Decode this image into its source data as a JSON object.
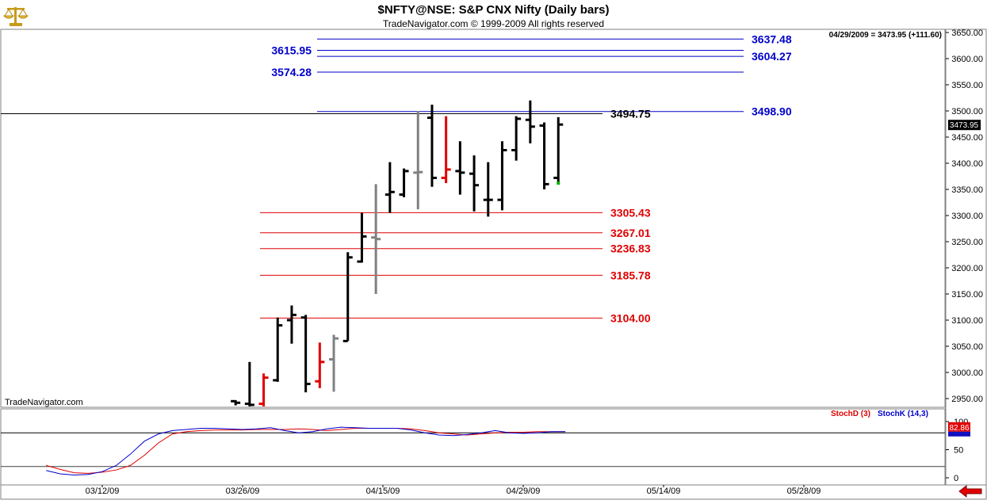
{
  "header": {
    "title": "$NFTY@NSE:  S&P CNX Nifty  (Daily bars)",
    "copyright": "TradeNavigator.com © 1999-2009 All rights reserved",
    "last_quote": "04/29/2009 = 3473.95 (+111.60)",
    "watermark": "TradeNavigator.com",
    "logo_icon": "scales-icon"
  },
  "chart_data": [
    {
      "type": "bar",
      "subtype": "ohlc",
      "title": "$NFTY@NSE:  S&P CNX Nifty  (Daily bars)",
      "price_axis": {
        "side": "right",
        "ylim": [
          2900,
          3660
        ],
        "ticks": [
          2950,
          3000,
          3050,
          3100,
          3150,
          3200,
          3250,
          3300,
          3350,
          3400,
          3450,
          3500,
          3550,
          3600,
          3650
        ],
        "tick_labels": [
          "2950.00",
          "3000.00",
          "3050.00",
          "3100.00",
          "3150.00",
          "3200.00",
          "3250.00",
          "3300.00",
          "3350.00",
          "3400.00",
          "3450.00",
          "3500.00",
          "3550.00",
          "3600.00",
          "3650.00"
        ],
        "last_price_label": "3473.95",
        "last_price": 3473.95
      },
      "x_axis": {
        "tick_labels": [
          "03/12/09",
          "03/26/09",
          "04/15/09",
          "04/29/09",
          "05/14/09",
          "05/28/09"
        ],
        "tick_bar_index": [
          0,
          10,
          20,
          30,
          40,
          50
        ]
      },
      "bars": [
        {
          "i": 9.5,
          "o": 2945,
          "h": 2947,
          "l": 2937,
          "c": 2942,
          "color": "#000000"
        },
        {
          "i": 10.5,
          "o": 2940,
          "h": 3020,
          "l": 2935,
          "c": 2938,
          "color": "#000000"
        },
        {
          "i": 11.5,
          "o": 2940,
          "h": 2998,
          "l": 2935,
          "c": 2990,
          "color": "#e00000"
        },
        {
          "i": 12.5,
          "o": 2985,
          "h": 3105,
          "l": 2982,
          "c": 3090,
          "color": "#000000"
        },
        {
          "i": 13.5,
          "o": 3100,
          "h": 3128,
          "l": 3055,
          "c": 3110,
          "color": "#000000"
        },
        {
          "i": 14.5,
          "o": 3105,
          "h": 3110,
          "l": 2962,
          "c": 2978,
          "color": "#000000"
        },
        {
          "i": 15.5,
          "o": 2983,
          "h": 3057,
          "l": 2970,
          "c": 3020,
          "color": "#e00000"
        },
        {
          "i": 16.5,
          "o": 3025,
          "h": 3072,
          "l": 2963,
          "c": 3065,
          "color": "#808080"
        },
        {
          "i": 17.5,
          "o": 3060,
          "h": 3230,
          "l": 3060,
          "c": 3220,
          "color": "#000000"
        },
        {
          "i": 18.5,
          "o": 3212,
          "h": 3305,
          "l": 3210,
          "c": 3260,
          "color": "#000000"
        },
        {
          "i": 19.5,
          "o": 3258,
          "h": 3360,
          "l": 3150,
          "c": 3255,
          "color": "#808080"
        },
        {
          "i": 20.5,
          "o": 3340,
          "h": 3402,
          "l": 3305,
          "c": 3345,
          "color": "#000000"
        },
        {
          "i": 21.5,
          "o": 3340,
          "h": 3390,
          "l": 3335,
          "c": 3385,
          "color": "#000000"
        },
        {
          "i": 22.5,
          "o": 3382,
          "h": 3500,
          "l": 3312,
          "c": 3383,
          "color": "#808080"
        },
        {
          "i": 23.5,
          "o": 3487,
          "h": 3512,
          "l": 3355,
          "c": 3372,
          "color": "#000000"
        },
        {
          "i": 24.5,
          "o": 3372,
          "h": 3490,
          "l": 3362,
          "c": 3388,
          "color": "#e00000"
        },
        {
          "i": 25.5,
          "o": 3385,
          "h": 3442,
          "l": 3340,
          "c": 3382,
          "color": "#000000"
        },
        {
          "i": 26.5,
          "o": 3380,
          "h": 3415,
          "l": 3308,
          "c": 3358,
          "color": "#000000"
        },
        {
          "i": 27.5,
          "o": 3330,
          "h": 3402,
          "l": 3298,
          "c": 3330,
          "color": "#000000"
        },
        {
          "i": 28.5,
          "o": 3330,
          "h": 3442,
          "l": 3310,
          "c": 3425,
          "color": "#000000"
        },
        {
          "i": 29.5,
          "o": 3425,
          "h": 3490,
          "l": 3405,
          "c": 3485,
          "color": "#000000"
        },
        {
          "i": 30.5,
          "o": 3483,
          "h": 3520,
          "l": 3438,
          "c": 3470,
          "color": "#000000"
        },
        {
          "i": 31.5,
          "o": 3472,
          "h": 3478,
          "l": 3350,
          "c": 3360,
          "color": "#000000"
        },
        {
          "i": 32.5,
          "o": 3372,
          "h": 3488,
          "l": 3360,
          "c": 3473.95,
          "color": "#000000"
        }
      ],
      "levels": [
        {
          "label": "3637.48",
          "value": 3637.48,
          "color": "#0000cc"
        },
        {
          "label": "3615.95",
          "value": 3615.95,
          "color": "#0000cc"
        },
        {
          "label": "3604.27",
          "value": 3604.27,
          "color": "#0000cc"
        },
        {
          "label": "3574.28",
          "value": 3574.28,
          "color": "#0000cc"
        },
        {
          "label": "3498.90",
          "value": 3498.9,
          "color": "#0000cc"
        },
        {
          "label": "3494.75",
          "value": 3494.75,
          "color": "#000000"
        },
        {
          "label": "3305.43",
          "value": 3305.43,
          "color": "#e00000"
        },
        {
          "label": "3267.01",
          "value": 3267.01,
          "color": "#e00000"
        },
        {
          "label": "3236.83",
          "value": 3236.83,
          "color": "#e00000"
        },
        {
          "label": "3185.78",
          "value": 3185.78,
          "color": "#e00000"
        },
        {
          "label": "3104.00",
          "value": 3104.0,
          "color": "#e00000"
        }
      ],
      "reference_line": {
        "value": 3494.75,
        "color": "#000000"
      }
    },
    {
      "type": "line",
      "title": "",
      "ylim": [
        -5,
        125
      ],
      "ticks": [
        0,
        50,
        100
      ],
      "tick_labels": [
        "0",
        "50",
        "100"
      ],
      "reference_lines": [
        20,
        80
      ],
      "last_value_label": "82.86",
      "legend": [
        "StochD (3)",
        "StochK (14,3)"
      ],
      "series": [
        {
          "name": "StochD (3)",
          "color": "#e00000",
          "x": [
            -4,
            -3,
            -2,
            -1,
            0,
            1,
            2,
            3,
            4,
            5,
            6,
            7,
            8,
            9,
            10,
            11,
            12,
            13,
            14,
            15,
            16,
            17,
            18,
            19,
            20,
            21,
            22,
            23,
            24,
            25,
            26,
            27,
            28,
            29,
            30,
            31,
            32,
            33
          ],
          "values": [
            22,
            15,
            9,
            8,
            10,
            14,
            22,
            40,
            62,
            78,
            82,
            84,
            85,
            85,
            85,
            86,
            86,
            86,
            87,
            86,
            84,
            86,
            88,
            88,
            88,
            88,
            87,
            84,
            80,
            78,
            76,
            78,
            80,
            81,
            81,
            82,
            82,
            82
          ]
        },
        {
          "name": "StochK (14,3)",
          "color": "#0000cc",
          "x": [
            -4,
            -3,
            -2,
            -1,
            0,
            1,
            2,
            3,
            4,
            5,
            6,
            7,
            8,
            9,
            10,
            11,
            12,
            13,
            14,
            15,
            16,
            17,
            18,
            19,
            20,
            21,
            22,
            23,
            24,
            25,
            26,
            27,
            28,
            29,
            30,
            31,
            32,
            33
          ],
          "values": [
            13,
            7,
            5,
            6,
            11,
            22,
            42,
            65,
            78,
            84,
            86,
            88,
            88,
            87,
            86,
            87,
            89,
            84,
            80,
            82,
            87,
            90,
            89,
            88,
            88,
            88,
            85,
            80,
            76,
            75,
            77,
            80,
            84,
            80,
            79,
            80,
            82,
            82
          ]
        }
      ]
    }
  ]
}
